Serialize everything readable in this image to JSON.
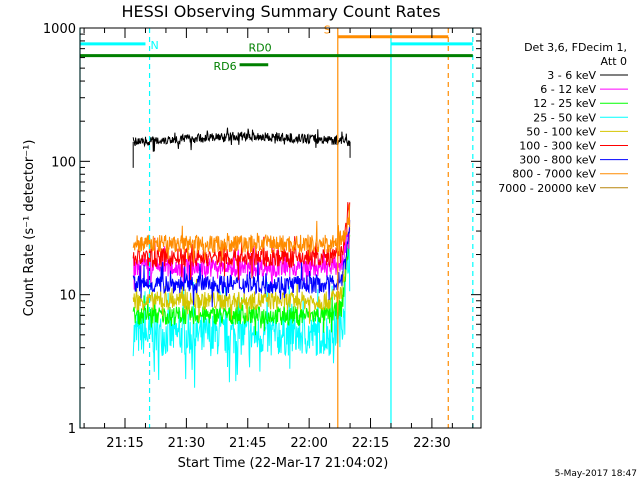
{
  "chart_data": {
    "type": "line",
    "title": "HESSI Observing Summary Count Rates",
    "xlabel": "Start Time (22-Mar-17 21:04:02)",
    "ylabel": "Count Rate (s⁻¹ detector⁻¹)",
    "yscale": "log",
    "ylim": [
      1,
      1000
    ],
    "xlim": [
      "21:04",
      "22:42"
    ],
    "x_ticks": [
      "21:15",
      "21:30",
      "21:45",
      "22:00",
      "22:15",
      "22:30"
    ],
    "y_ticks": [
      "1",
      "10",
      "100",
      "1000"
    ],
    "timestamp": "5-May-2017 18:47",
    "legend": {
      "placement": "right",
      "header": "Det 3,6, FDecim 1,",
      "header2": "Att 0"
    },
    "series": [
      {
        "name": "3 - 6 keV",
        "color": "#000000",
        "x": [
          "21:17",
          "21:25",
          "21:35",
          "21:45",
          "21:55",
          "22:05",
          "22:10"
        ],
        "y": [
          140,
          145,
          150,
          155,
          150,
          145,
          140
        ]
      },
      {
        "name": "6 - 12 keV",
        "color": "#ff00ff",
        "x": [
          "21:17",
          "21:25",
          "21:35",
          "21:45",
          "21:55",
          "22:05",
          "22:08",
          "22:10"
        ],
        "y": [
          16,
          16,
          16,
          16,
          16,
          16,
          17,
          35
        ]
      },
      {
        "name": "12 - 25 keV",
        "color": "#00ff00",
        "x": [
          "21:17",
          "21:25",
          "21:35",
          "21:45",
          "21:55",
          "22:05",
          "22:08",
          "22:10"
        ],
        "y": [
          7,
          7,
          7,
          7,
          7,
          7,
          8,
          30
        ]
      },
      {
        "name": "25 - 50 keV",
        "color": "#00ffff",
        "x": [
          "21:17",
          "21:25",
          "21:35",
          "21:45",
          "21:55",
          "22:05",
          "22:08",
          "22:10"
        ],
        "y": [
          5,
          5,
          5,
          5,
          5,
          5,
          6,
          28
        ]
      },
      {
        "name": "50 - 100 keV",
        "color": "#d4c400",
        "x": [
          "21:17",
          "21:25",
          "21:35",
          "21:45",
          "21:55",
          "22:05",
          "22:08",
          "22:10"
        ],
        "y": [
          9,
          9,
          9,
          9,
          9,
          9,
          10,
          30
        ]
      },
      {
        "name": "100 - 300 keV",
        "color": "#ff0000",
        "x": [
          "21:17",
          "21:25",
          "21:35",
          "21:45",
          "21:55",
          "22:05",
          "22:08",
          "22:10"
        ],
        "y": [
          19,
          19,
          19,
          19,
          19,
          19,
          20,
          48
        ]
      },
      {
        "name": "300 - 800 keV",
        "color": "#0000ff",
        "x": [
          "21:17",
          "21:25",
          "21:35",
          "21:45",
          "21:55",
          "22:05",
          "22:08",
          "22:10"
        ],
        "y": [
          12,
          12,
          12,
          12,
          12,
          12,
          13,
          33
        ]
      },
      {
        "name": "800 - 7000 keV",
        "color": "#ff8c00",
        "x": [
          "21:17",
          "21:25",
          "21:35",
          "21:45",
          "21:55",
          "22:05",
          "22:08",
          "22:10"
        ],
        "y": [
          24,
          24,
          24,
          24,
          24,
          24,
          25,
          38
        ]
      },
      {
        "name": "7000 - 20000 keV",
        "color": "#b8860b",
        "x": [],
        "y": []
      }
    ],
    "flags": [
      {
        "label": "N",
        "color": "#00ffff",
        "x_start": "21:04",
        "x_end": "21:20",
        "y": 760
      },
      {
        "label": "",
        "color": "#00ffff",
        "x_start": "22:20",
        "x_end": "22:40",
        "y": 760
      },
      {
        "label": "S",
        "color": "#ff8c00",
        "x_start": "22:07",
        "x_end": "22:34",
        "y": 860
      },
      {
        "label": "RD0",
        "color": "#008000",
        "x_start": "21:04",
        "x_end": "22:40",
        "y": 620
      },
      {
        "label": "RD6",
        "color": "#008000",
        "x_start": "21:43",
        "x_end": "21:50",
        "y": 530
      }
    ],
    "vlines": [
      {
        "x": "21:04",
        "color": "#00ffff",
        "style": "solid"
      },
      {
        "x": "21:21",
        "color": "#00ffff",
        "style": "dashed"
      },
      {
        "x": "22:07",
        "color": "#ff8c00",
        "style": "solid"
      },
      {
        "x": "22:20",
        "color": "#00ffff",
        "style": "solid"
      },
      {
        "x": "22:34",
        "color": "#ff8c00",
        "style": "dashed"
      },
      {
        "x": "22:40",
        "color": "#00ffff",
        "style": "dashed"
      }
    ]
  }
}
